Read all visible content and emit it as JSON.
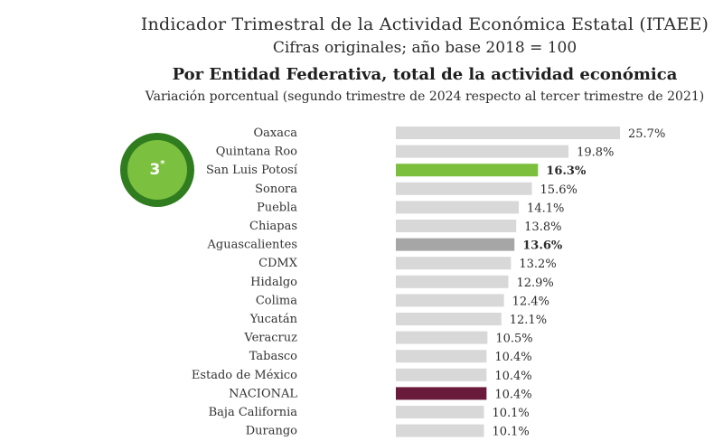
{
  "header": {
    "title": "Indicador Trimestral de la Actividad Económica Estatal (ITAEE)",
    "subtitle": "Cifras originales; año base 2018 = 100",
    "heading": "Por Entidad Federativa, total de la actividad económica",
    "description": "Variación porcentual (segundo trimestre de 2024 respecto al tercer trimestre de 2021)"
  },
  "badge": {
    "rank": "3",
    "mark": "*"
  },
  "colors": {
    "default": "#d8d8d8",
    "highlight": "#7cbf3c",
    "reference": "#a6a6a6",
    "national": "#6a1a3a"
  },
  "chart_data": {
    "type": "bar",
    "orientation": "horizontal",
    "categories": [
      "Oaxaca",
      "Quintana Roo",
      "San Luis Potosí",
      "Sonora",
      "Puebla",
      "Chiapas",
      "Aguascalientes",
      "CDMX",
      "Hidalgo",
      "Colima",
      "Yucatán",
      "Veracruz",
      "Tabasco",
      "Estado de México",
      "NACIONAL",
      "Baja California",
      "Durango"
    ],
    "values": [
      25.7,
      19.8,
      16.3,
      15.6,
      14.1,
      13.8,
      13.6,
      13.2,
      12.9,
      12.4,
      12.1,
      10.5,
      10.4,
      10.4,
      10.4,
      10.1,
      10.1
    ],
    "labels": [
      "25.7%",
      "19.8%",
      "16.3%",
      "15.6%",
      "14.1%",
      "13.8%",
      "13.6%",
      "13.2%",
      "12.9%",
      "12.4%",
      "12.1%",
      "10.5%",
      "10.4%",
      "10.4%",
      "10.4%",
      "10.1%",
      "10.1%"
    ],
    "bar_styles": [
      "default",
      "default",
      "highlight",
      "default",
      "default",
      "default",
      "reference",
      "default",
      "default",
      "default",
      "default",
      "default",
      "default",
      "default",
      "national",
      "default",
      "default"
    ],
    "bold_labels": [
      false,
      false,
      true,
      false,
      false,
      false,
      true,
      false,
      false,
      false,
      false,
      false,
      false,
      false,
      false,
      false,
      false
    ],
    "xlim": [
      0,
      25.7
    ],
    "grid": false,
    "legend": "none"
  }
}
